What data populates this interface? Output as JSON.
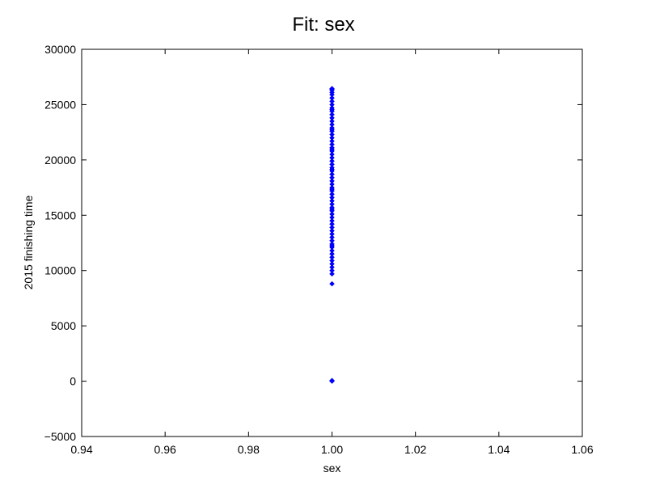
{
  "chart_data": {
    "type": "scatter",
    "title": "Fit: sex",
    "xlabel": "sex",
    "ylabel": "2015 finishing time",
    "xlim": [
      0.94,
      1.06
    ],
    "ylim": [
      -5000,
      30000
    ],
    "xticks": [
      "0.94",
      "0.96",
      "0.98",
      "1.00",
      "1.02",
      "1.04",
      "1.06"
    ],
    "yticks": [
      "−5000",
      "0",
      "5000",
      "10000",
      "15000",
      "20000",
      "25000",
      "30000"
    ],
    "grid": false,
    "marker_color": "#0000ff",
    "series": [
      {
        "x": [
          1.0,
          1.0,
          1.0,
          1.0,
          1.0,
          1.0,
          1.0,
          1.0,
          1.0,
          1.0,
          1.0,
          1.0,
          1.0,
          1.0,
          1.0,
          1.0,
          1.0,
          1.0,
          1.0,
          1.0,
          1.0,
          1.0,
          1.0,
          1.0,
          1.0,
          1.0,
          1.0,
          1.0,
          1.0,
          1.0,
          1.0,
          1.0,
          1.0,
          1.0,
          1.0,
          1.0,
          1.0,
          1.0,
          1.0,
          1.0,
          1.0,
          1.0,
          1.0,
          1.0,
          1.0,
          1.0,
          1.0,
          1.0,
          1.0,
          1.0,
          1.0,
          1.0,
          1.0,
          1.0,
          1.0,
          1.0,
          1.0,
          1.0,
          1.0,
          1.0,
          1.0,
          1.0,
          1.0,
          1.0,
          1.0,
          1.0,
          1.0,
          1.0,
          1.0,
          1.0
        ],
        "y": [
          0,
          30,
          60,
          8800,
          9700,
          10000,
          10300,
          10600,
          10900,
          11200,
          11500,
          11800,
          12100,
          12400,
          12700,
          13000,
          13300,
          13600,
          13900,
          14200,
          14500,
          14800,
          15100,
          15400,
          15700,
          16000,
          16300,
          16600,
          16900,
          17200,
          17500,
          17800,
          18100,
          18400,
          18700,
          19000,
          19300,
          19600,
          19900,
          20200,
          20500,
          20800,
          21100,
          21400,
          21700,
          22000,
          22300,
          22600,
          22900,
          23200,
          23500,
          23800,
          24100,
          24400,
          24700,
          25000,
          25300,
          25600,
          25900,
          26100,
          26300,
          26400,
          26450,
          12250,
          15550,
          17350,
          19150,
          20950,
          22750,
          24550
        ]
      }
    ]
  }
}
